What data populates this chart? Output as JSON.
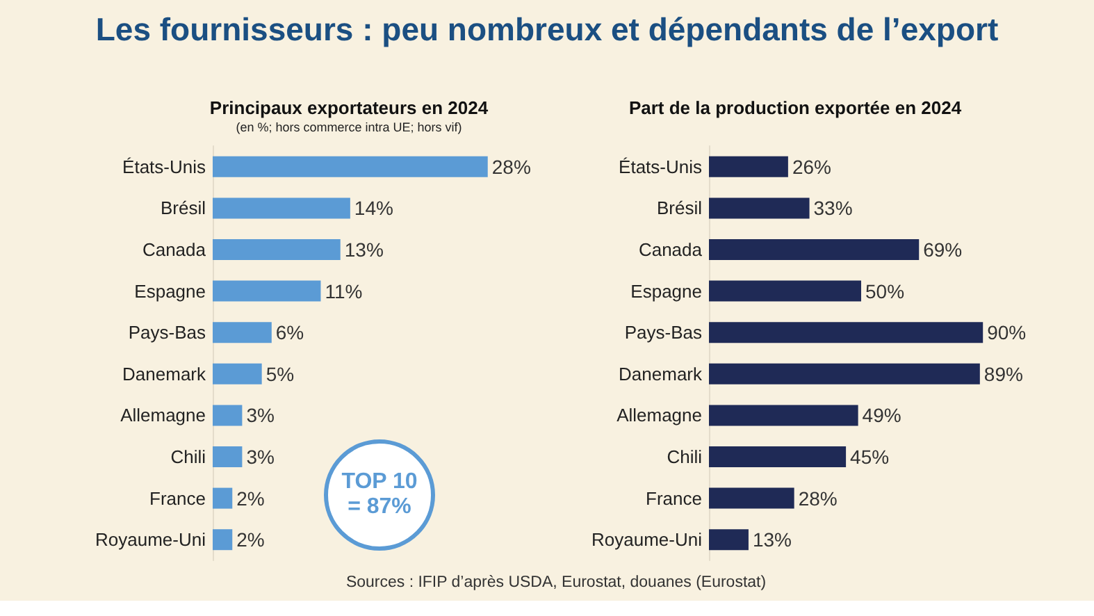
{
  "chart_data": [
    {
      "type": "bar",
      "orientation": "horizontal",
      "title": "Principaux exportateurs en 2024",
      "subtitle": "(en %; hors commerce intra UE; hors vif)",
      "categories": [
        "États-Unis",
        "Brésil",
        "Canada",
        "Espagne",
        "Pays-Bas",
        "Danemark",
        "Allemagne",
        "Chili",
        "France",
        "Royaume-Uni"
      ],
      "values": [
        28,
        14,
        13,
        11,
        6,
        5,
        3,
        3,
        2,
        2
      ],
      "value_labels": [
        "28%",
        "14%",
        "13%",
        "11%",
        "6%",
        "5%",
        "3%",
        "3%",
        "2%",
        "2%"
      ],
      "color": "#5b9bd5",
      "annotations": [
        "Les fournisseurs : peu nombreux et dépendants de l’export",
        "TOP 10 = 87%"
      ],
      "tick_labels": "y"
    },
    {
      "type": "bar",
      "orientation": "horizontal",
      "title": "Part de la production exportée en 2024",
      "categories": [
        "États-Unis",
        "Brésil",
        "Canada",
        "Espagne",
        "Pays-Bas",
        "Danemark",
        "Allemagne",
        "Chili",
        "France",
        "Royaume-Uni"
      ],
      "values": [
        26,
        33,
        69,
        50,
        90,
        89,
        49,
        45,
        28,
        13
      ],
      "value_labels": [
        "26%",
        "33%",
        "69%",
        "50%",
        "90%",
        "89%",
        "49%",
        "45%",
        "28%",
        "13%"
      ],
      "color": "#1f2a56",
      "annotations": [
        "Sources : IFIP d’après USDA, Eurostat, douanes (Eurostat)"
      ],
      "tick_labels": "y"
    }
  ]
}
